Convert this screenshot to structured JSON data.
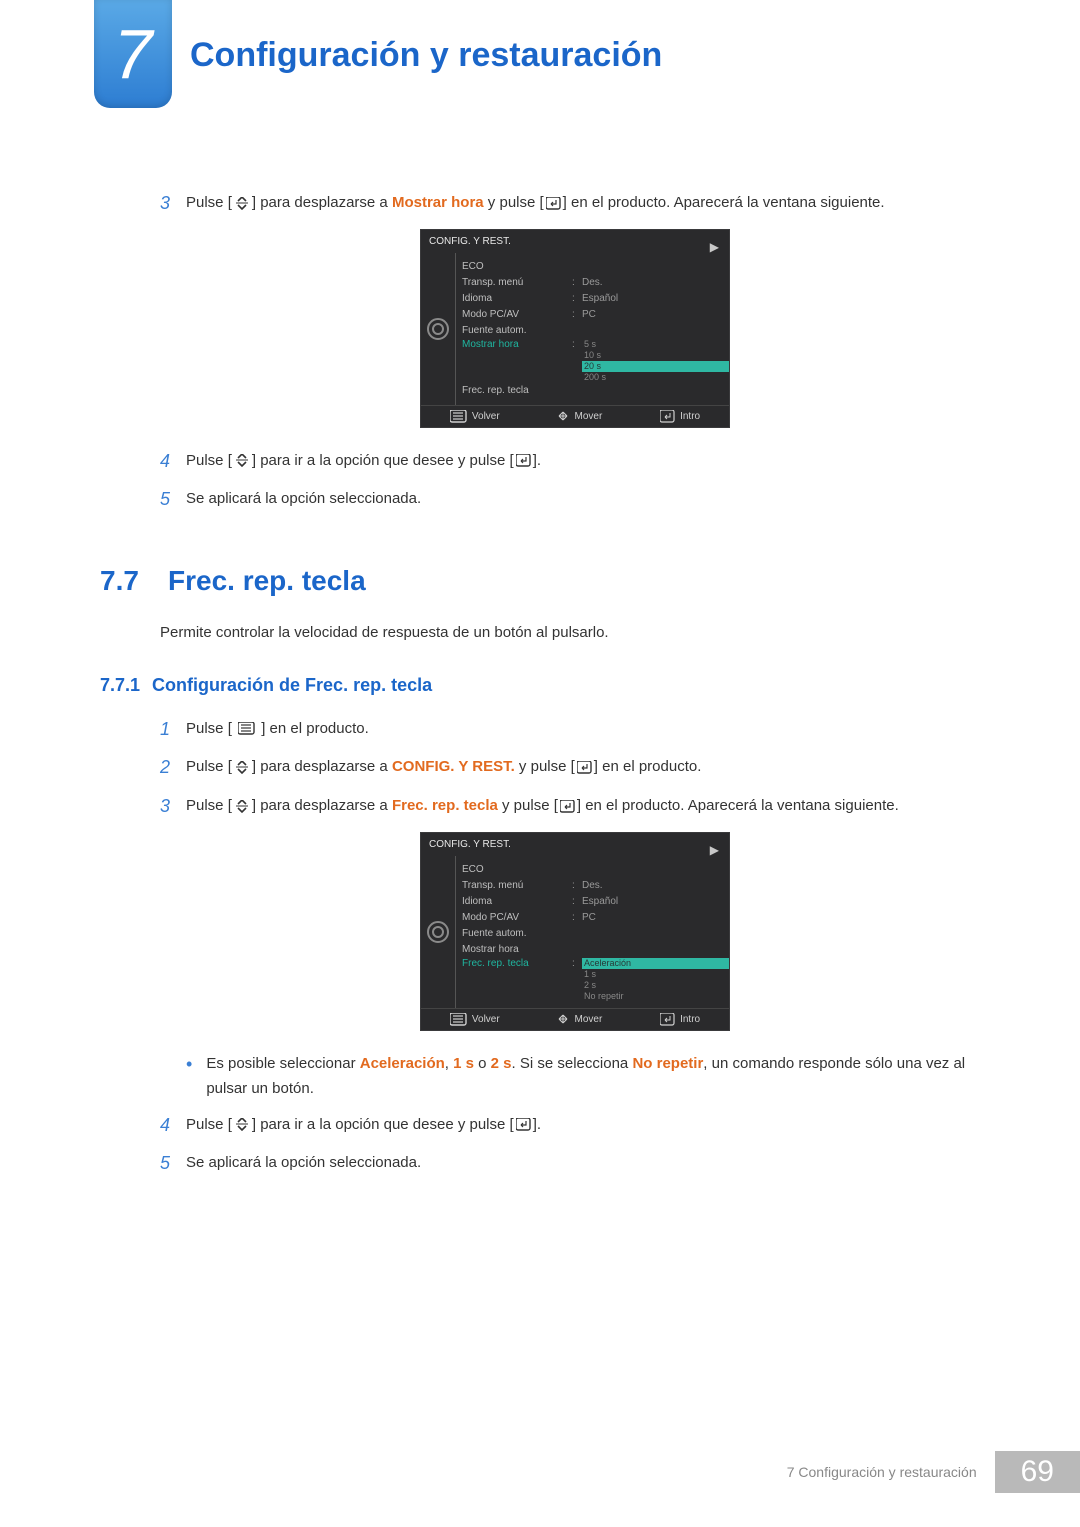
{
  "header": {
    "chapter_number": "7",
    "chapter_title": "Configuración y restauración"
  },
  "steps_top": [
    {
      "num": "3",
      "pre": "Pulse [",
      "icon": "updown",
      "mid1": "] para desplazarse a ",
      "hl": "Mostrar hora",
      "mid2": " y pulse [",
      "icon2": "enter",
      "post": "] en el producto. Aparecerá la ventana siguiente."
    },
    {
      "num": "4",
      "pre": "Pulse [",
      "icon": "updown",
      "mid1": "] para ir a la opción que desee y pulse [",
      "icon2": "enter",
      "post": "]."
    },
    {
      "num": "5",
      "text_plain": "Se aplicará la opción seleccionada."
    }
  ],
  "osd1": {
    "title": "CONFIG. Y REST.",
    "rows": [
      {
        "label": "ECO",
        "value": "",
        "arrow": true
      },
      {
        "label": "Transp. menú",
        "value": "Des."
      },
      {
        "label": "Idioma",
        "value": "Español"
      },
      {
        "label": "Modo PC/AV",
        "value": "PC"
      },
      {
        "label": "Fuente autom.",
        "value": ""
      },
      {
        "label": "Mostrar hora",
        "active": true,
        "options": [
          "5 s",
          "10 s",
          "20 s",
          "200 s"
        ],
        "selected_index": 2
      },
      {
        "label": "Frec. rep. tecla",
        "value": ""
      }
    ],
    "footer": {
      "back": "Volver",
      "move": "Mover",
      "enter": "Intro"
    }
  },
  "section": {
    "num": "7.7",
    "title": "Frec. rep. tecla",
    "desc": "Permite controlar la velocidad de respuesta de un botón al pulsarlo."
  },
  "subsection": {
    "num": "7.7.1",
    "title": "Configuración de Frec. rep. tecla"
  },
  "steps_bottom": [
    {
      "num": "1",
      "pre": "Pulse [ ",
      "icon": "menu",
      "post": " ] en el producto."
    },
    {
      "num": "2",
      "pre": "Pulse [",
      "icon": "updown",
      "mid1": "] para desplazarse a ",
      "hl": "CONFIG. Y REST.",
      "mid2": " y pulse [",
      "icon2": "enter",
      "post": "] en el producto."
    },
    {
      "num": "3",
      "pre": "Pulse [",
      "icon": "updown",
      "mid1": "] para desplazarse a ",
      "hl": "Frec. rep. tecla",
      "mid2": " y pulse [",
      "icon2": "enter",
      "post": "] en el producto. Aparecerá la ventana siguiente."
    }
  ],
  "osd2": {
    "title": "CONFIG. Y REST.",
    "rows": [
      {
        "label": "ECO",
        "value": "",
        "arrow": true
      },
      {
        "label": "Transp. menú",
        "value": "Des."
      },
      {
        "label": "Idioma",
        "value": "Español"
      },
      {
        "label": "Modo PC/AV",
        "value": "PC"
      },
      {
        "label": "Fuente autom.",
        "value": ""
      },
      {
        "label": "Mostrar hora",
        "value": ""
      },
      {
        "label": "Frec. rep. tecla",
        "active": true,
        "options": [
          "Aceleración",
          "1 s",
          "2 s",
          "No repetir"
        ],
        "selected_index": 0
      }
    ],
    "footer": {
      "back": "Volver",
      "move": "Mover",
      "enter": "Intro"
    }
  },
  "bullet": {
    "pre": "Es posible seleccionar ",
    "w1": "Aceleración",
    "c1": ", ",
    "w2": "1 s",
    "c2": " o ",
    "w3": "2 s",
    "c3": ". Si se selecciona ",
    "w4": "No repetir",
    "post": ", un comando responde sólo una vez al pulsar un botón."
  },
  "steps_after": [
    {
      "num": "4",
      "pre": "Pulse [",
      "icon": "updown",
      "mid1": "] para ir a la opción que desee y pulse [",
      "icon2": "enter",
      "post": "]."
    },
    {
      "num": "5",
      "text_plain": "Se aplicará la opción seleccionada."
    }
  ],
  "footer": {
    "text": "7 Configuración y restauración",
    "page": "69"
  },
  "colors": {
    "blue": "#1b66c9",
    "orange": "#e26a1f",
    "teal": "#2fb8a3",
    "osd_bg": "#2a2a2c"
  }
}
